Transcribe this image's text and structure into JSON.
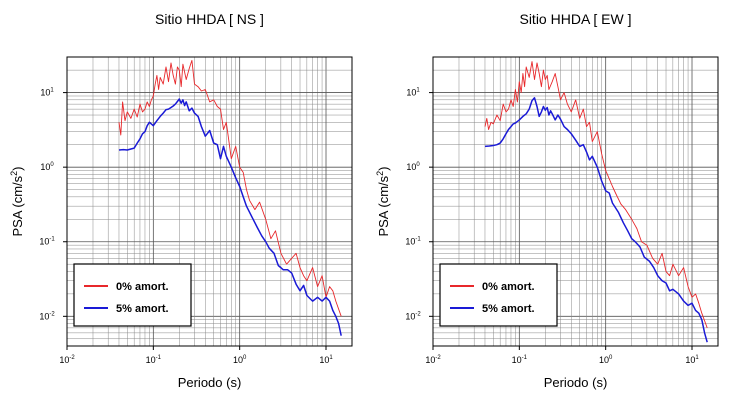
{
  "chart_data": [
    {
      "type": "line",
      "title": "Sitio HHDA [ NS ]",
      "xlabel": "Periodo (s)",
      "ylabel": "PSA (cm/s",
      "ylabel_sup": "2",
      "ylabel_end": ")",
      "xscale": "log",
      "yscale": "log",
      "xlim": [
        0.01,
        20
      ],
      "ylim": [
        0.004,
        30
      ],
      "grid": true,
      "legend_position": "bottom-left",
      "x_ticks": [
        {
          "base": "10",
          "exp": "-2"
        },
        {
          "base": "10",
          "exp": "-1"
        },
        {
          "base": "10",
          "exp": "0"
        },
        {
          "base": "10",
          "exp": "1"
        }
      ],
      "y_ticks": [
        {
          "base": "10",
          "exp": "-2"
        },
        {
          "base": "10",
          "exp": "-1"
        },
        {
          "base": "10",
          "exp": "0"
        },
        {
          "base": "10",
          "exp": "1"
        }
      ],
      "series": [
        {
          "name": "0% amort.",
          "color": "#e8282b",
          "x": [
            0.04,
            0.042,
            0.044,
            0.047,
            0.05,
            0.055,
            0.06,
            0.065,
            0.07,
            0.075,
            0.08,
            0.085,
            0.09,
            0.095,
            0.1,
            0.105,
            0.11,
            0.115,
            0.12,
            0.13,
            0.14,
            0.15,
            0.16,
            0.17,
            0.18,
            0.19,
            0.2,
            0.21,
            0.22,
            0.24,
            0.26,
            0.28,
            0.3,
            0.33,
            0.36,
            0.4,
            0.45,
            0.5,
            0.55,
            0.6,
            0.65,
            0.7,
            0.8,
            0.9,
            1.0,
            1.1,
            1.2,
            1.3,
            1.5,
            1.7,
            2.0,
            2.3,
            2.6,
            3.0,
            3.5,
            4.0,
            4.5,
            5.0,
            5.5,
            6.0,
            7.0,
            8.0,
            9.0,
            10.0,
            11.0,
            12.0,
            13.0,
            15.0
          ],
          "y": [
            4.0,
            2.7,
            7.5,
            4.2,
            5.5,
            4.5,
            6.0,
            4.7,
            7.0,
            5.5,
            6.0,
            7.5,
            6.5,
            8.0,
            9.0,
            13.0,
            17.0,
            11.0,
            16.0,
            13.0,
            22.0,
            14.0,
            25.0,
            17.0,
            13.0,
            22.0,
            20.0,
            12.0,
            24.0,
            15.0,
            21.0,
            27.0,
            13.0,
            12.0,
            10.5,
            11.0,
            7.5,
            8.0,
            6.5,
            6.0,
            3.2,
            4.0,
            1.3,
            1.9,
            1.0,
            0.85,
            0.5,
            0.36,
            0.27,
            0.34,
            0.2,
            0.11,
            0.14,
            0.07,
            0.05,
            0.06,
            0.07,
            0.045,
            0.035,
            0.03,
            0.045,
            0.025,
            0.035,
            0.018,
            0.025,
            0.022,
            0.016,
            0.01
          ]
        },
        {
          "name": "5% amort.",
          "color": "#1a1ad6",
          "x": [
            0.04,
            0.045,
            0.05,
            0.055,
            0.06,
            0.065,
            0.07,
            0.075,
            0.08,
            0.085,
            0.09,
            0.1,
            0.11,
            0.12,
            0.13,
            0.14,
            0.15,
            0.16,
            0.17,
            0.18,
            0.19,
            0.2,
            0.21,
            0.22,
            0.23,
            0.24,
            0.26,
            0.28,
            0.3,
            0.33,
            0.36,
            0.4,
            0.45,
            0.5,
            0.55,
            0.6,
            0.65,
            0.7,
            0.8,
            0.9,
            1.0,
            1.1,
            1.2,
            1.4,
            1.6,
            1.8,
            2.0,
            2.2,
            2.5,
            2.8,
            3.2,
            3.6,
            4.0,
            4.5,
            5.0,
            5.5,
            6.0,
            7.0,
            8.0,
            9.0,
            10.0,
            11.0,
            12.0,
            13.0,
            14.0,
            15.0
          ],
          "y": [
            1.7,
            1.72,
            1.7,
            1.75,
            1.8,
            2.1,
            2.4,
            2.8,
            3.0,
            3.6,
            4.0,
            3.6,
            4.2,
            4.8,
            5.3,
            5.9,
            6.0,
            6.3,
            6.6,
            7.0,
            7.6,
            8.2,
            7.2,
            8.0,
            6.7,
            7.5,
            5.7,
            6.2,
            5.3,
            4.8,
            3.5,
            2.6,
            3.1,
            2.1,
            2.0,
            1.3,
            1.9,
            1.4,
            1.0,
            0.72,
            0.55,
            0.4,
            0.3,
            0.21,
            0.155,
            0.12,
            0.1,
            0.082,
            0.07,
            0.048,
            0.042,
            0.042,
            0.038,
            0.027,
            0.022,
            0.026,
            0.019,
            0.016,
            0.018,
            0.016,
            0.018,
            0.016,
            0.012,
            0.01,
            0.008,
            0.0055
          ]
        }
      ]
    },
    {
      "type": "line",
      "title": "Sitio HHDA [ EW ]",
      "xlabel": "Periodo (s)",
      "ylabel": "PSA (cm/s",
      "ylabel_sup": "2",
      "ylabel_end": ")",
      "xscale": "log",
      "yscale": "log",
      "xlim": [
        0.01,
        20
      ],
      "ylim": [
        0.004,
        30
      ],
      "grid": true,
      "legend_position": "bottom-left",
      "x_ticks": [
        {
          "base": "10",
          "exp": "-2"
        },
        {
          "base": "10",
          "exp": "-1"
        },
        {
          "base": "10",
          "exp": "0"
        },
        {
          "base": "10",
          "exp": "1"
        }
      ],
      "y_ticks": [
        {
          "base": "10",
          "exp": "-2"
        },
        {
          "base": "10",
          "exp": "-1"
        },
        {
          "base": "10",
          "exp": "0"
        },
        {
          "base": "10",
          "exp": "1"
        }
      ],
      "series": [
        {
          "name": "0% amort.",
          "color": "#e8282b",
          "x": [
            0.04,
            0.042,
            0.044,
            0.047,
            0.05,
            0.055,
            0.06,
            0.065,
            0.07,
            0.075,
            0.08,
            0.085,
            0.09,
            0.095,
            0.1,
            0.105,
            0.11,
            0.115,
            0.12,
            0.13,
            0.14,
            0.15,
            0.16,
            0.17,
            0.18,
            0.19,
            0.2,
            0.21,
            0.22,
            0.24,
            0.26,
            0.28,
            0.3,
            0.33,
            0.36,
            0.4,
            0.45,
            0.5,
            0.55,
            0.6,
            0.65,
            0.7,
            0.8,
            0.9,
            1.0,
            1.1,
            1.2,
            1.3,
            1.5,
            1.7,
            2.0,
            2.3,
            2.6,
            3.0,
            3.5,
            4.0,
            4.5,
            5.0,
            5.5,
            6.0,
            7.0,
            8.0,
            9.0,
            10.0,
            11.0,
            12.0,
            13.0,
            15.0
          ],
          "y": [
            3.5,
            4.5,
            3.2,
            4.0,
            3.8,
            5.0,
            4.2,
            7.0,
            5.5,
            6.0,
            8.0,
            6.5,
            11.0,
            7.5,
            14.0,
            10.0,
            18.0,
            12.0,
            22.0,
            16.0,
            26.0,
            15.0,
            25.0,
            18.0,
            12.0,
            20.0,
            15.0,
            17.0,
            11.0,
            14.0,
            18.0,
            12.0,
            8.0,
            10.0,
            7.0,
            5.5,
            8.0,
            4.5,
            6.0,
            3.5,
            4.0,
            2.2,
            3.0,
            1.5,
            0.9,
            0.7,
            0.55,
            0.45,
            0.32,
            0.27,
            0.2,
            0.15,
            0.1,
            0.09,
            0.06,
            0.05,
            0.07,
            0.04,
            0.035,
            0.05,
            0.035,
            0.045,
            0.025,
            0.018,
            0.02,
            0.015,
            0.011,
            0.007
          ]
        },
        {
          "name": "5% amort.",
          "color": "#1a1ad6",
          "x": [
            0.04,
            0.045,
            0.05,
            0.055,
            0.06,
            0.065,
            0.07,
            0.075,
            0.08,
            0.085,
            0.09,
            0.1,
            0.11,
            0.12,
            0.13,
            0.14,
            0.15,
            0.16,
            0.17,
            0.18,
            0.19,
            0.2,
            0.21,
            0.22,
            0.23,
            0.24,
            0.26,
            0.28,
            0.3,
            0.33,
            0.36,
            0.4,
            0.45,
            0.5,
            0.55,
            0.6,
            0.65,
            0.7,
            0.8,
            0.9,
            1.0,
            1.1,
            1.2,
            1.4,
            1.6,
            1.8,
            2.0,
            2.2,
            2.5,
            2.8,
            3.2,
            3.6,
            4.0,
            4.5,
            5.0,
            5.5,
            6.0,
            7.0,
            8.0,
            9.0,
            10.0,
            11.0,
            12.0,
            13.0,
            14.0,
            15.0
          ],
          "y": [
            1.9,
            1.92,
            1.95,
            2.0,
            2.1,
            2.4,
            2.8,
            3.2,
            3.5,
            3.8,
            3.9,
            4.3,
            4.8,
            5.2,
            6.0,
            7.8,
            8.5,
            6.5,
            4.8,
            5.5,
            6.5,
            5.8,
            6.3,
            5.0,
            5.7,
            5.2,
            4.3,
            5.0,
            4.4,
            3.5,
            3.2,
            2.8,
            2.3,
            1.9,
            2.0,
            1.6,
            1.25,
            1.4,
            1.0,
            0.65,
            0.48,
            0.45,
            0.33,
            0.25,
            0.18,
            0.14,
            0.11,
            0.1,
            0.085,
            0.062,
            0.055,
            0.045,
            0.035,
            0.03,
            0.028,
            0.022,
            0.023,
            0.02,
            0.016,
            0.014,
            0.015,
            0.012,
            0.011,
            0.009,
            0.006,
            0.0045
          ]
        }
      ]
    }
  ]
}
